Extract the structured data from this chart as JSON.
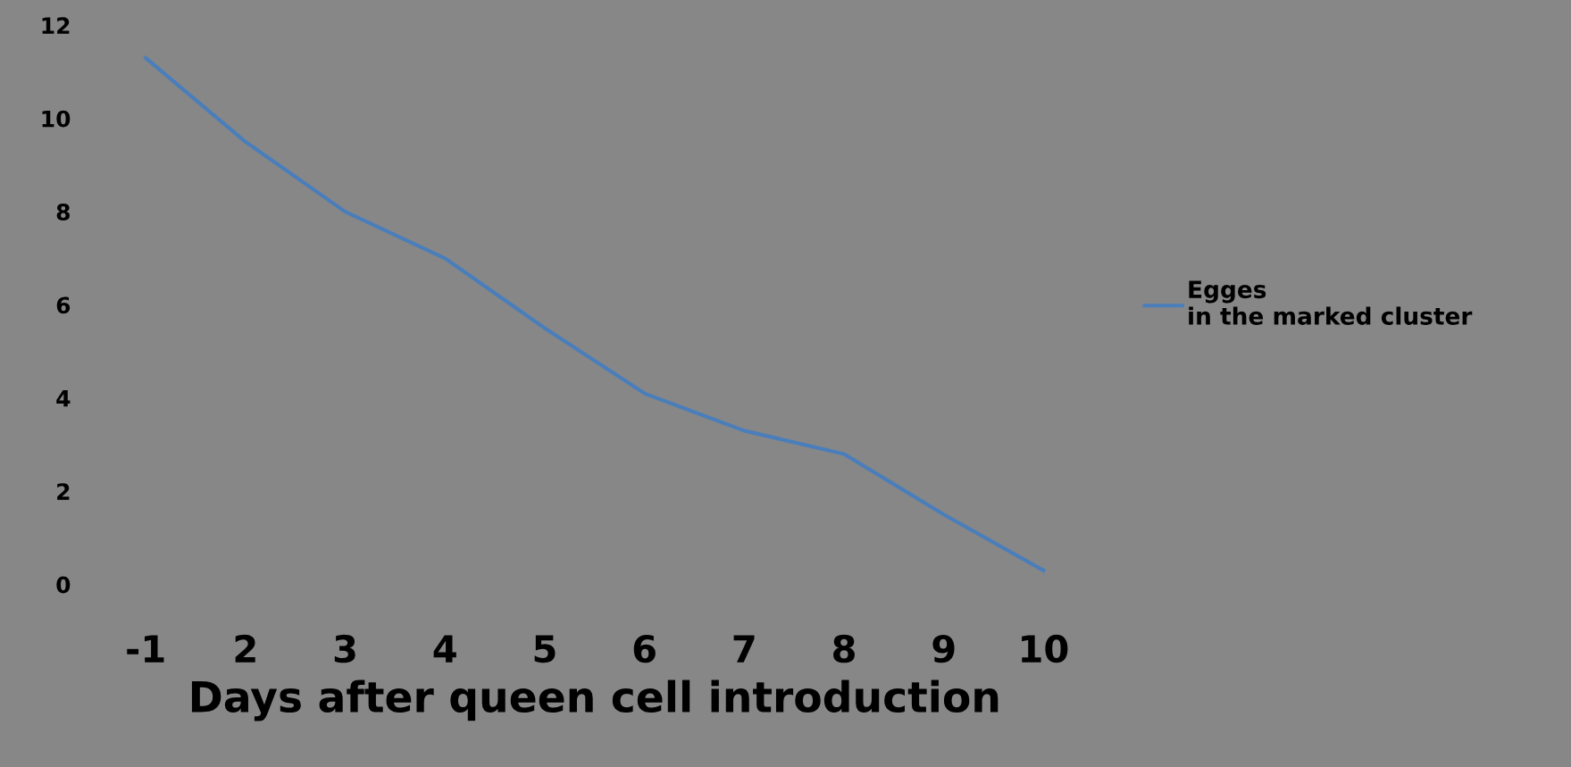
{
  "chart_data": {
    "type": "line",
    "xlabel": "Days after queen cell introduction",
    "categories": [
      "-1",
      "2",
      "3",
      "4",
      "5",
      "6",
      "7",
      "8",
      "9",
      "10"
    ],
    "series": [
      {
        "name": "Egges\nin the marked cluster",
        "color": "#4a7ebb",
        "values": [
          11.3,
          9.5,
          8.0,
          7.0,
          5.5,
          4.1,
          3.3,
          2.8,
          1.5,
          0.3
        ]
      }
    ],
    "ylim": [
      0,
      12
    ],
    "yticks": [
      0,
      2,
      4,
      6,
      8,
      10,
      12
    ],
    "grid": false,
    "legend": "right",
    "marker": "none",
    "line_style": "solid"
  }
}
